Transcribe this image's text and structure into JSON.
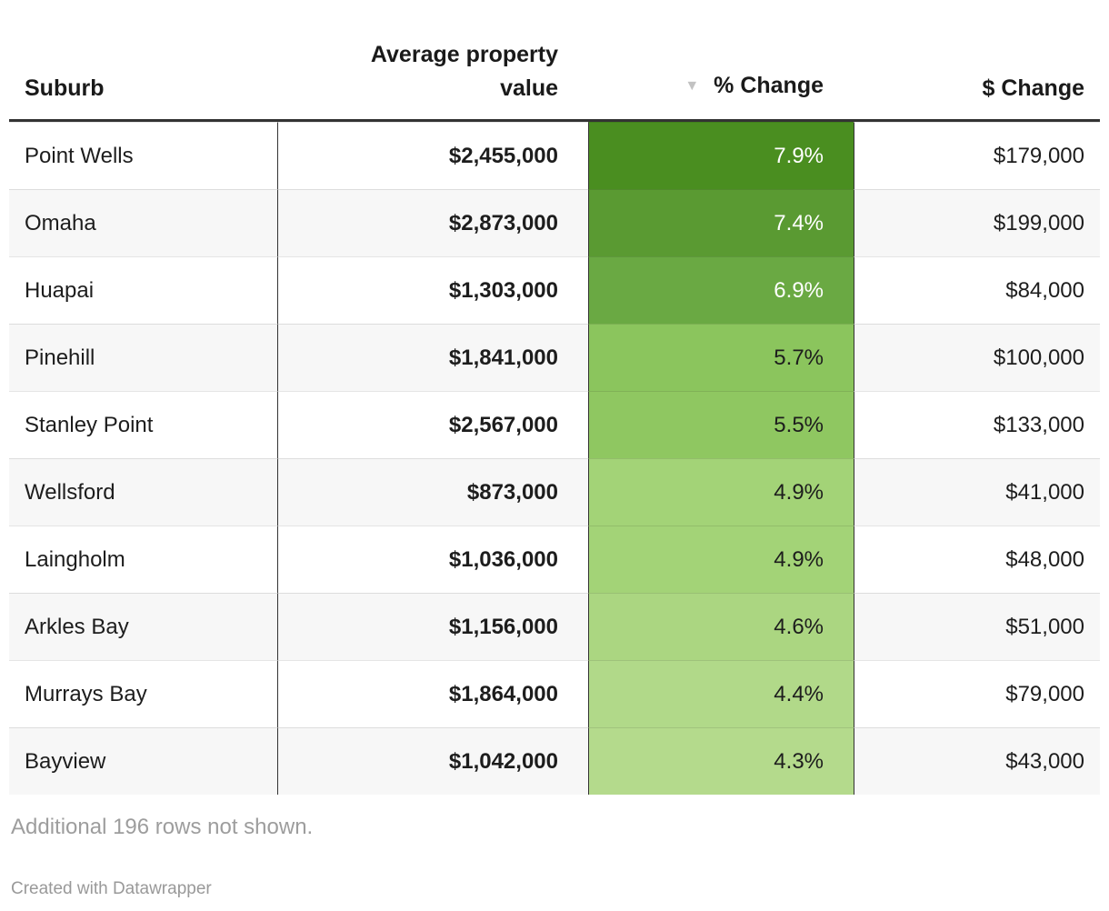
{
  "table": {
    "columns": [
      {
        "label": "Suburb"
      },
      {
        "label": "Average property value"
      },
      {
        "label": "% Change",
        "sorted": "desc"
      },
      {
        "label": "$ Change"
      }
    ],
    "sort_icon": "▼",
    "rows": [
      {
        "suburb": "Point Wells",
        "avg_value": "$2,455,000",
        "pct_change": "7.9%",
        "dollar_change": "$179,000",
        "pct_bg": "#4a8e20",
        "pct_text": "#ffffff"
      },
      {
        "suburb": "Omaha",
        "avg_value": "$2,873,000",
        "pct_change": "7.4%",
        "dollar_change": "$199,000",
        "pct_bg": "#5a9a32",
        "pct_text": "#ffffff"
      },
      {
        "suburb": "Huapai",
        "avg_value": "$1,303,000",
        "pct_change": "6.9%",
        "dollar_change": "$84,000",
        "pct_bg": "#6aa943",
        "pct_text": "#ffffff"
      },
      {
        "suburb": "Pinehill",
        "avg_value": "$1,841,000",
        "pct_change": "5.7%",
        "dollar_change": "$100,000",
        "pct_bg": "#8bc55d",
        "pct_text": "#1d1d1d"
      },
      {
        "suburb": "Stanley Point",
        "avg_value": "$2,567,000",
        "pct_change": "5.5%",
        "dollar_change": "$133,000",
        "pct_bg": "#8fc761",
        "pct_text": "#1d1d1d"
      },
      {
        "suburb": "Wellsford",
        "avg_value": "$873,000",
        "pct_change": "4.9%",
        "dollar_change": "$41,000",
        "pct_bg": "#a3d377",
        "pct_text": "#1d1d1d"
      },
      {
        "suburb": "Laingholm",
        "avg_value": "$1,036,000",
        "pct_change": "4.9%",
        "dollar_change": "$48,000",
        "pct_bg": "#a3d377",
        "pct_text": "#1d1d1d"
      },
      {
        "suburb": "Arkles Bay",
        "avg_value": "$1,156,000",
        "pct_change": "4.6%",
        "dollar_change": "$51,000",
        "pct_bg": "#abd681",
        "pct_text": "#1d1d1d"
      },
      {
        "suburb": "Murrays Bay",
        "avg_value": "$1,864,000",
        "pct_change": "4.4%",
        "dollar_change": "$79,000",
        "pct_bg": "#b1d989",
        "pct_text": "#1d1d1d"
      },
      {
        "suburb": "Bayview",
        "avg_value": "$1,042,000",
        "pct_change": "4.3%",
        "dollar_change": "$43,000",
        "pct_bg": "#b4da8c",
        "pct_text": "#1d1d1d"
      }
    ]
  },
  "footer": {
    "note": "Additional 196 rows not shown.",
    "credit": "Created with Datawrapper"
  },
  "chart_data": {
    "type": "table",
    "title": "",
    "columns": [
      "Suburb",
      "Average property value",
      "% Change",
      "$ Change"
    ],
    "sorted_by": "% Change",
    "sort_direction": "descending",
    "heatmap_column": "% Change",
    "heatmap_range": [
      4.3,
      7.9
    ],
    "rows": [
      [
        "Point Wells",
        2455000,
        7.9,
        179000
      ],
      [
        "Omaha",
        2873000,
        7.4,
        199000
      ],
      [
        "Huapai",
        1303000,
        6.9,
        84000
      ],
      [
        "Pinehill",
        1841000,
        5.7,
        100000
      ],
      [
        "Stanley Point",
        2567000,
        5.5,
        133000
      ],
      [
        "Wellsford",
        873000,
        4.9,
        41000
      ],
      [
        "Laingholm",
        1036000,
        4.9,
        48000
      ],
      [
        "Arkles Bay",
        1156000,
        4.6,
        51000
      ],
      [
        "Murrays Bay",
        1864000,
        4.4,
        79000
      ],
      [
        "Bayview",
        1042000,
        4.3,
        43000
      ]
    ],
    "hidden_rows_note": "Additional 196 rows not shown."
  }
}
